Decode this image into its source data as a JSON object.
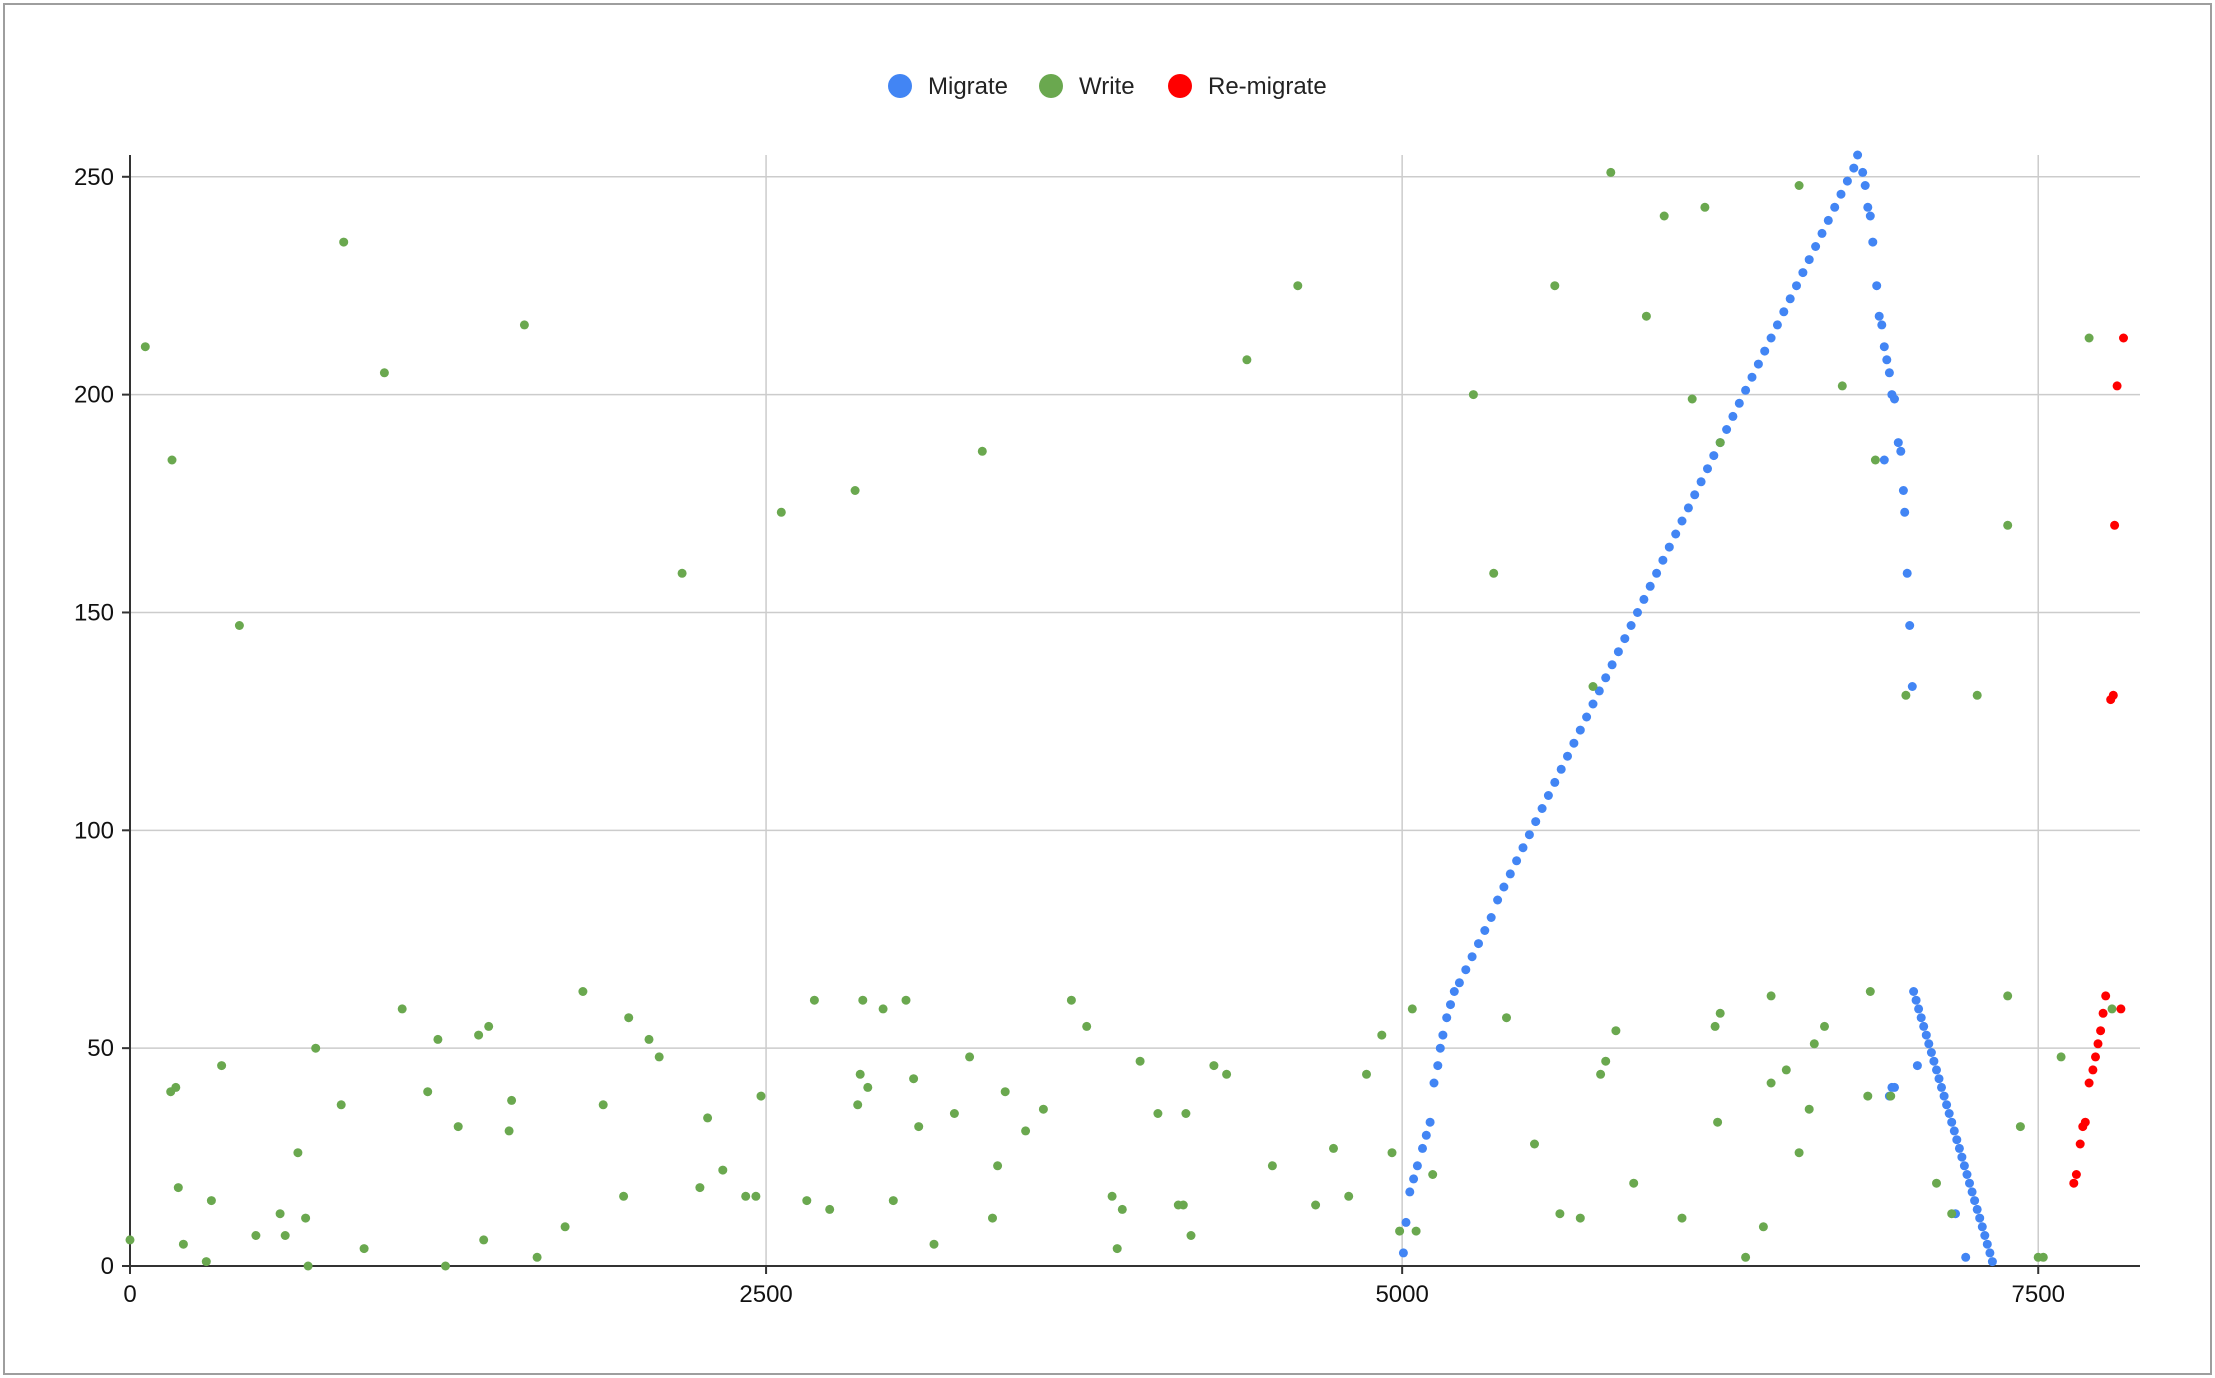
{
  "chart_data": {
    "type": "scatter",
    "title": "",
    "xlabel": "",
    "ylabel": "",
    "xlim": [
      0,
      7900
    ],
    "ylim": [
      0,
      255
    ],
    "x_ticks": [
      0,
      2500,
      5000,
      7500
    ],
    "y_ticks": [
      0,
      50,
      100,
      150,
      200,
      250
    ],
    "x_tick_labels": [
      "0",
      "2500",
      "5000",
      "7500"
    ],
    "y_tick_labels": [
      "0",
      "50",
      "100",
      "150",
      "200",
      "250"
    ],
    "grid": true,
    "legend_position": "top-center",
    "series": [
      {
        "name": "Migrate",
        "color": "#4285f4",
        "points": [
          [
            5005,
            3
          ],
          [
            5015,
            10
          ],
          [
            5030,
            17
          ],
          [
            5045,
            20
          ],
          [
            5060,
            23
          ],
          [
            5080,
            27
          ],
          [
            5095,
            30
          ],
          [
            5110,
            33
          ],
          [
            5125,
            42
          ],
          [
            5140,
            46
          ],
          [
            5150,
            50
          ],
          [
            5160,
            53
          ],
          [
            5175,
            57
          ],
          [
            5190,
            60
          ],
          [
            5205,
            63
          ],
          [
            5225,
            65
          ],
          [
            5250,
            68
          ],
          [
            5275,
            71
          ],
          [
            5300,
            74
          ],
          [
            5325,
            77
          ],
          [
            5350,
            80
          ],
          [
            5375,
            84
          ],
          [
            5400,
            87
          ],
          [
            5425,
            90
          ],
          [
            5450,
            93
          ],
          [
            5475,
            96
          ],
          [
            5500,
            99
          ],
          [
            5525,
            102
          ],
          [
            5550,
            105
          ],
          [
            5575,
            108
          ],
          [
            5600,
            111
          ],
          [
            5625,
            114
          ],
          [
            5650,
            117
          ],
          [
            5675,
            120
          ],
          [
            5700,
            123
          ],
          [
            5725,
            126
          ],
          [
            5750,
            129
          ],
          [
            5775,
            132
          ],
          [
            5800,
            135
          ],
          [
            5825,
            138
          ],
          [
            5850,
            141
          ],
          [
            5875,
            144
          ],
          [
            5900,
            147
          ],
          [
            5925,
            150
          ],
          [
            5950,
            153
          ],
          [
            5975,
            156
          ],
          [
            6000,
            159
          ],
          [
            6025,
            162
          ],
          [
            6050,
            165
          ],
          [
            6075,
            168
          ],
          [
            6100,
            171
          ],
          [
            6125,
            174
          ],
          [
            6150,
            177
          ],
          [
            6175,
            180
          ],
          [
            6200,
            183
          ],
          [
            6225,
            186
          ],
          [
            6250,
            189
          ],
          [
            6275,
            192
          ],
          [
            6300,
            195
          ],
          [
            6325,
            198
          ],
          [
            6350,
            201
          ],
          [
            6375,
            204
          ],
          [
            6400,
            207
          ],
          [
            6425,
            210
          ],
          [
            6450,
            213
          ],
          [
            6475,
            216
          ],
          [
            6500,
            219
          ],
          [
            6525,
            222
          ],
          [
            6550,
            225
          ],
          [
            6575,
            228
          ],
          [
            6600,
            231
          ],
          [
            6625,
            234
          ],
          [
            6650,
            237
          ],
          [
            6675,
            240
          ],
          [
            6700,
            243
          ],
          [
            6725,
            246
          ],
          [
            6750,
            249
          ],
          [
            6775,
            252
          ],
          [
            6790,
            255
          ],
          [
            6810,
            251
          ],
          [
            6820,
            248
          ],
          [
            6830,
            243
          ],
          [
            6840,
            241
          ],
          [
            6850,
            235
          ],
          [
            6865,
            225
          ],
          [
            6875,
            218
          ],
          [
            6885,
            216
          ],
          [
            6895,
            211
          ],
          [
            6905,
            208
          ],
          [
            6915,
            205
          ],
          [
            6925,
            200
          ],
          [
            6935,
            199
          ],
          [
            6950,
            189
          ],
          [
            6960,
            187
          ],
          [
            6970,
            178
          ],
          [
            6975,
            173
          ],
          [
            6985,
            159
          ],
          [
            6995,
            147
          ],
          [
            7005,
            133
          ],
          [
            7010,
            63
          ],
          [
            7020,
            61
          ],
          [
            7030,
            59
          ],
          [
            7040,
            57
          ],
          [
            7050,
            55
          ],
          [
            7060,
            53
          ],
          [
            7070,
            51
          ],
          [
            7080,
            49
          ],
          [
            7090,
            47
          ],
          [
            7100,
            45
          ],
          [
            7110,
            43
          ],
          [
            7120,
            41
          ],
          [
            7130,
            39
          ],
          [
            7140,
            37
          ],
          [
            7150,
            35
          ],
          [
            7160,
            33
          ],
          [
            7170,
            31
          ],
          [
            7180,
            29
          ],
          [
            7190,
            27
          ],
          [
            7200,
            25
          ],
          [
            7210,
            23
          ],
          [
            7220,
            21
          ],
          [
            7230,
            19
          ],
          [
            7240,
            17
          ],
          [
            7250,
            15
          ],
          [
            7260,
            13
          ],
          [
            7270,
            11
          ],
          [
            7280,
            9
          ],
          [
            7290,
            7
          ],
          [
            7300,
            5
          ],
          [
            7310,
            3
          ],
          [
            7320,
            1
          ],
          [
            6895,
            185
          ],
          [
            7025,
            46
          ],
          [
            6915,
            39
          ],
          [
            6925,
            41
          ],
          [
            6935,
            41
          ],
          [
            7175,
            12
          ],
          [
            7215,
            2
          ]
        ]
      },
      {
        "name": "Write",
        "color": "#6aa84f",
        "points": [
          [
            0,
            6
          ],
          [
            60,
            211
          ],
          [
            165,
            185
          ],
          [
            160,
            40
          ],
          [
            180,
            41
          ],
          [
            190,
            18
          ],
          [
            210,
            5
          ],
          [
            300,
            1
          ],
          [
            320,
            15
          ],
          [
            360,
            46
          ],
          [
            430,
            147
          ],
          [
            495,
            7
          ],
          [
            590,
            12
          ],
          [
            610,
            7
          ],
          [
            660,
            26
          ],
          [
            690,
            11
          ],
          [
            700,
            0
          ],
          [
            730,
            50
          ],
          [
            830,
            37
          ],
          [
            840,
            235
          ],
          [
            920,
            4
          ],
          [
            1000,
            205
          ],
          [
            1070,
            59
          ],
          [
            1170,
            40
          ],
          [
            1210,
            52
          ],
          [
            1240,
            0
          ],
          [
            1290,
            32
          ],
          [
            1370,
            53
          ],
          [
            1390,
            6
          ],
          [
            1410,
            55
          ],
          [
            1490,
            31
          ],
          [
            1500,
            38
          ],
          [
            1550,
            216
          ],
          [
            1600,
            2
          ],
          [
            1710,
            9
          ],
          [
            1780,
            63
          ],
          [
            1860,
            37
          ],
          [
            1940,
            16
          ],
          [
            1960,
            57
          ],
          [
            2040,
            52
          ],
          [
            2080,
            48
          ],
          [
            2170,
            159
          ],
          [
            2240,
            18
          ],
          [
            2270,
            34
          ],
          [
            2330,
            22
          ],
          [
            2420,
            16
          ],
          [
            2460,
            16
          ],
          [
            2480,
            39
          ],
          [
            2560,
            173
          ],
          [
            2660,
            15
          ],
          [
            2690,
            61
          ],
          [
            2750,
            13
          ],
          [
            2850,
            178
          ],
          [
            2860,
            37
          ],
          [
            2870,
            44
          ],
          [
            2880,
            61
          ],
          [
            2900,
            41
          ],
          [
            2960,
            59
          ],
          [
            3000,
            15
          ],
          [
            3050,
            61
          ],
          [
            3080,
            43
          ],
          [
            3100,
            32
          ],
          [
            3160,
            5
          ],
          [
            3240,
            35
          ],
          [
            3300,
            48
          ],
          [
            3350,
            187
          ],
          [
            3390,
            11
          ],
          [
            3410,
            23
          ],
          [
            3440,
            40
          ],
          [
            3520,
            31
          ],
          [
            3590,
            36
          ],
          [
            3700,
            61
          ],
          [
            3760,
            55
          ],
          [
            3860,
            16
          ],
          [
            3880,
            4
          ],
          [
            3900,
            13
          ],
          [
            3970,
            47
          ],
          [
            4040,
            35
          ],
          [
            4120,
            14
          ],
          [
            4140,
            14
          ],
          [
            4150,
            35
          ],
          [
            4170,
            7
          ],
          [
            4260,
            46
          ],
          [
            4310,
            44
          ],
          [
            4390,
            208
          ],
          [
            4490,
            23
          ],
          [
            4590,
            225
          ],
          [
            4660,
            14
          ],
          [
            4730,
            27
          ],
          [
            4790,
            16
          ],
          [
            4860,
            44
          ],
          [
            4920,
            53
          ],
          [
            4960,
            26
          ],
          [
            4990,
            8
          ],
          [
            5040,
            59
          ],
          [
            5055,
            8
          ],
          [
            5120,
            21
          ],
          [
            5280,
            200
          ],
          [
            5360,
            159
          ],
          [
            5410,
            57
          ],
          [
            5520,
            28
          ],
          [
            5600,
            225
          ],
          [
            5620,
            12
          ],
          [
            5700,
            11
          ],
          [
            5750,
            133
          ],
          [
            5780,
            44
          ],
          [
            5800,
            47
          ],
          [
            5820,
            251
          ],
          [
            5840,
            54
          ],
          [
            5910,
            19
          ],
          [
            5960,
            218
          ],
          [
            6030,
            241
          ],
          [
            6100,
            11
          ],
          [
            6140,
            199
          ],
          [
            6190,
            243
          ],
          [
            6230,
            55
          ],
          [
            6240,
            33
          ],
          [
            6250,
            58
          ],
          [
            6250,
            189
          ],
          [
            6350,
            2
          ],
          [
            6420,
            9
          ],
          [
            6450,
            42
          ],
          [
            6450,
            62
          ],
          [
            6510,
            45
          ],
          [
            6560,
            248
          ],
          [
            6560,
            26
          ],
          [
            6600,
            36
          ],
          [
            6620,
            51
          ],
          [
            6660,
            55
          ],
          [
            6730,
            202
          ],
          [
            6830,
            39
          ],
          [
            6840,
            63
          ],
          [
            6860,
            185
          ],
          [
            6920,
            39
          ],
          [
            6980,
            131
          ],
          [
            7100,
            19
          ],
          [
            7160,
            12
          ],
          [
            7260,
            131
          ],
          [
            7380,
            62
          ],
          [
            7380,
            170
          ],
          [
            7430,
            32
          ],
          [
            7500,
            2
          ],
          [
            7520,
            2
          ],
          [
            7590,
            48
          ],
          [
            7700,
            213
          ],
          [
            7790,
            59
          ]
        ]
      },
      {
        "name": "Re-migrate",
        "color": "#ff0000",
        "points": [
          [
            7640,
            19
          ],
          [
            7650,
            21
          ],
          [
            7665,
            28
          ],
          [
            7675,
            32
          ],
          [
            7685,
            33
          ],
          [
            7700,
            42
          ],
          [
            7715,
            45
          ],
          [
            7725,
            48
          ],
          [
            7735,
            51
          ],
          [
            7745,
            54
          ],
          [
            7755,
            58
          ],
          [
            7765,
            62
          ],
          [
            7785,
            130
          ],
          [
            7795,
            131
          ],
          [
            7800,
            170
          ],
          [
            7810,
            202
          ],
          [
            7825,
            59
          ],
          [
            7835,
            213
          ]
        ]
      }
    ]
  }
}
